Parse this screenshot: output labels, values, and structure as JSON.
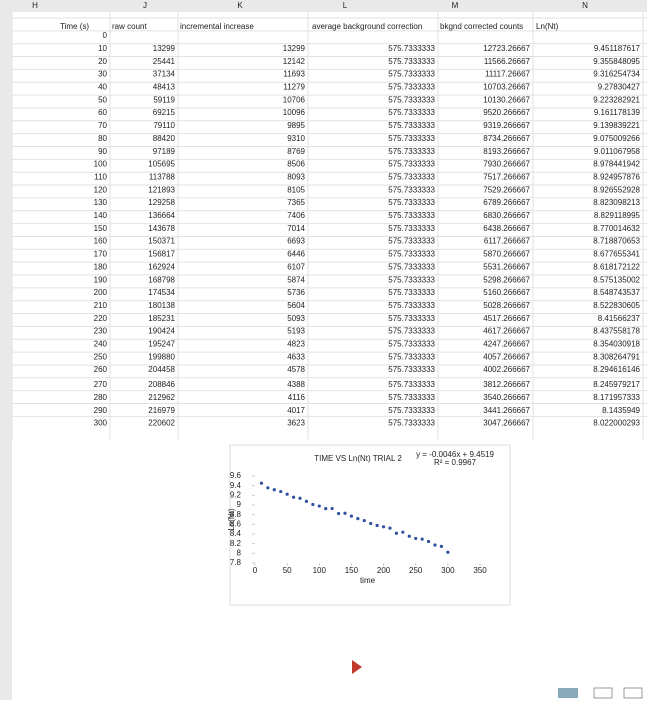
{
  "sheet": {
    "column_letters": [
      "H",
      "J",
      "K",
      "L",
      "M",
      "N"
    ],
    "headers": [
      "Time (s)",
      "raw count",
      "incremental increase",
      "average background correction",
      "bkgnd corrected counts",
      "Ln(Nt)"
    ],
    "rows": [
      [
        0
      ],
      [
        10,
        13299,
        13299,
        575.7333333,
        12723.26667,
        9.451187617
      ],
      [
        20,
        25441,
        12142,
        575.7333333,
        11566.26667,
        9.355848095
      ],
      [
        30,
        37134,
        11693,
        575.7333333,
        11117.26667,
        9.316254734
      ],
      [
        40,
        48413,
        11279,
        575.7333333,
        10703.26667,
        9.27830427
      ],
      [
        50,
        59119,
        10706,
        575.7333333,
        10130.26667,
        9.223282921
      ],
      [
        60,
        69215,
        10096,
        575.7333333,
        9520.266667,
        9.161178139
      ],
      [
        70,
        79110,
        9895,
        575.7333333,
        9319.266667,
        9.139839221
      ],
      [
        80,
        88420,
        9310,
        575.7333333,
        8734.266667,
        9.075009266
      ],
      [
        90,
        97189,
        8769,
        575.7333333,
        8193.266667,
        9.011067958
      ],
      [
        100,
        105695,
        8506,
        575.7333333,
        7930.266667,
        8.978441942
      ],
      [
        110,
        113788,
        8093,
        575.7333333,
        7517.266667,
        8.924957876
      ],
      [
        120,
        121893,
        8105,
        575.7333333,
        7529.266667,
        8.926552928
      ],
      [
        130,
        129258,
        7365,
        575.7333333,
        6789.266667,
        8.823098213
      ],
      [
        140,
        136664,
        7406,
        575.7333333,
        6830.266667,
        8.829118995
      ],
      [
        150,
        143678,
        7014,
        575.7333333,
        6438.266667,
        8.770014632
      ],
      [
        160,
        150371,
        6693,
        575.7333333,
        6117.266667,
        8.718870653
      ],
      [
        170,
        156817,
        6446,
        575.7333333,
        5870.266667,
        8.677655341
      ],
      [
        180,
        162924,
        6107,
        575.7333333,
        5531.266667,
        8.618172122
      ],
      [
        190,
        168798,
        5874,
        575.7333333,
        5298.266667,
        8.575135002
      ],
      [
        200,
        174534,
        5736,
        575.7333333,
        5160.266667,
        8.548743537
      ],
      [
        210,
        180138,
        5604,
        575.7333333,
        5028.266667,
        8.522830605
      ],
      [
        220,
        185231,
        5093,
        575.7333333,
        4517.266667,
        8.41566237
      ],
      [
        230,
        190424,
        5193,
        575.7333333,
        4617.266667,
        8.437558178
      ],
      [
        240,
        195247,
        4823,
        575.7333333,
        4247.266667,
        8.354030918
      ],
      [
        250,
        199880,
        4633,
        575.7333333,
        4057.266667,
        8.308264791
      ],
      [
        260,
        204458,
        4578,
        575.7333333,
        4002.266667,
        8.294616146
      ],
      [
        270,
        208846,
        4388,
        575.7333333,
        3812.266667,
        8.245979217
      ],
      [
        280,
        212962,
        4116,
        575.7333333,
        3540.266667,
        8.171957333
      ],
      [
        290,
        216979,
        4017,
        575.7333333,
        3441.266667,
        8.1435949
      ],
      [
        300,
        220602,
        3623,
        575.7333333,
        3047.266667,
        8.022000293
      ]
    ]
  },
  "chart": {
    "title": "TIME VS Ln(Nt) TRIAL 2",
    "equation": "y = -0.0046x + 9.4519",
    "r_squared": "R² = 0.9967",
    "x_label": "time",
    "y_label": "Ln(Nt)",
    "color": "#2f4fa0",
    "xlim": [
      0,
      350
    ],
    "xticks": [
      0,
      50,
      100,
      150,
      200,
      250,
      300,
      350
    ],
    "ylim": [
      7.8,
      9.6
    ],
    "yticks": [
      9.6,
      9.4,
      9.2,
      9,
      8.8,
      8.6,
      8.4,
      8.2,
      8,
      7.8
    ]
  }
}
